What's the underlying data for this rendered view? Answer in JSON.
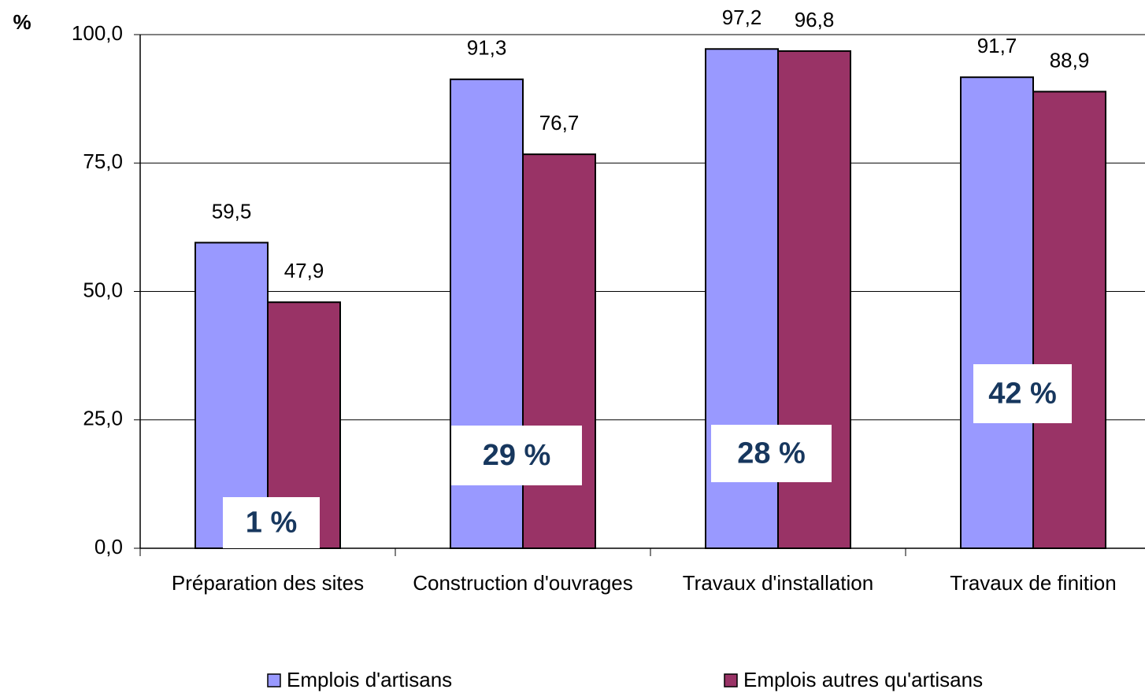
{
  "chart_data": {
    "type": "bar",
    "y_label": "%",
    "categories": [
      "Préparation des sites",
      "Construction d'ouvrages",
      "Travaux d'installation",
      "Travaux de finition"
    ],
    "series": [
      {
        "name": "Emplois d'artisans",
        "color": "#9999ff",
        "values": [
          59.5,
          91.3,
          97.2,
          91.7
        ],
        "value_labels": [
          "59,5",
          "91,3",
          "97,2",
          "91,7"
        ]
      },
      {
        "name": "Emplois autres qu'artisans",
        "color": "#993366",
        "values": [
          47.9,
          76.7,
          96.8,
          88.9
        ],
        "value_labels": [
          "47,9",
          "76,7",
          "96,8",
          "88,9"
        ]
      }
    ],
    "ylim": [
      0,
      100
    ],
    "yticks": [
      {
        "value": 0,
        "label": "0,0"
      },
      {
        "value": 25,
        "label": "25,0"
      },
      {
        "value": 50,
        "label": "50,0"
      },
      {
        "value": 75,
        "label": "75,0"
      },
      {
        "value": 100,
        "label": "100,0"
      }
    ],
    "grid": true,
    "legend": "bottom",
    "annotations": [
      "1 %",
      "29 %",
      "28 %",
      "42 %"
    ]
  }
}
